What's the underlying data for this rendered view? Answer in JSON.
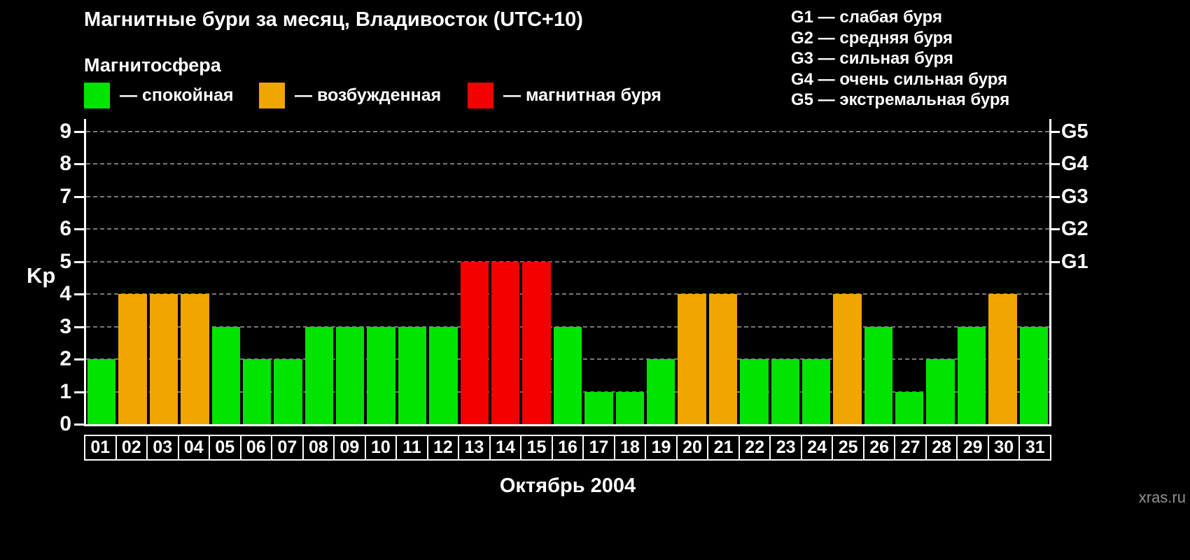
{
  "header": {
    "title": "Магнитные бури за месяц, Владивосток (UTC+10)",
    "subtitle": "Магнитосфера"
  },
  "legend": {
    "items": [
      {
        "id": "quiet",
        "label": "— спокойная",
        "color": "#00e400"
      },
      {
        "id": "excited",
        "label": "— возбужденная",
        "color": "#f0a500"
      },
      {
        "id": "storm",
        "label": "— магнитная буря",
        "color": "#f40000"
      }
    ]
  },
  "g_legend": {
    "items": [
      "G1 — слабая буря",
      "G2 — средняя буря",
      "G3 — сильная буря",
      "G4 — очень сильная буря",
      "G5 — экстремальная буря"
    ]
  },
  "chart_data": {
    "type": "bar",
    "title": "Магнитные бури за месяц, Владивосток (UTC+10)",
    "xlabel": "Октябрь 2004",
    "ylabel": "Kp",
    "ylim": [
      0,
      9
    ],
    "yticks": [
      0,
      1,
      2,
      3,
      4,
      5,
      6,
      7,
      8,
      9
    ],
    "grid": "dashed horizontal lines at each Kp level 1-9",
    "legend_position": "top",
    "categories": [
      "01",
      "02",
      "03",
      "04",
      "05",
      "06",
      "07",
      "08",
      "09",
      "10",
      "11",
      "12",
      "13",
      "14",
      "15",
      "16",
      "17",
      "18",
      "19",
      "20",
      "21",
      "22",
      "23",
      "24",
      "25",
      "26",
      "27",
      "28",
      "29",
      "30",
      "31"
    ],
    "values": [
      2,
      4,
      4,
      4,
      3,
      2,
      2,
      3,
      3,
      3,
      3,
      3,
      5,
      5,
      5,
      3,
      1,
      1,
      2,
      4,
      4,
      2,
      2,
      2,
      4,
      3,
      1,
      2,
      3,
      4,
      3
    ],
    "color_rules": {
      "quiet_max_kp": 3,
      "excited_kp": 4,
      "storm_min_kp": 5
    },
    "colors": {
      "quiet": "#00e400",
      "excited": "#f0a500",
      "storm": "#f40000"
    },
    "right_axis": [
      {
        "label": "G1",
        "kp": 5
      },
      {
        "label": "G2",
        "kp": 6
      },
      {
        "label": "G3",
        "kp": 7
      },
      {
        "label": "G4",
        "kp": 8
      },
      {
        "label": "G5",
        "kp": 9
      }
    ]
  },
  "footer": {
    "watermark": "xras.ru"
  }
}
